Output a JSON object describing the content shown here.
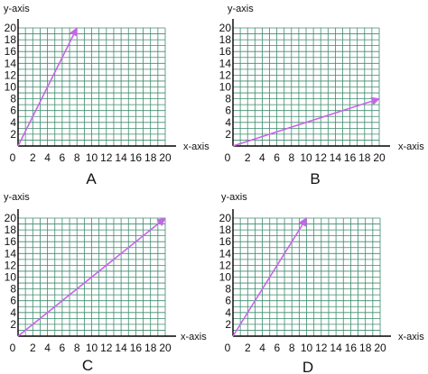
{
  "colors": {
    "grid": "#3f8a6e",
    "axis": "#000000",
    "vector": "#c765e8",
    "text": "#111111"
  },
  "chart_data": [
    {
      "type": "line",
      "label": "A",
      "xlabel": "x-axis",
      "ylabel": "y-axis",
      "xlim": [
        0,
        20
      ],
      "ylim": [
        0,
        20
      ],
      "xticks": [
        "0",
        "2",
        "4",
        "6",
        "8",
        "10",
        "12",
        "14",
        "16",
        "18",
        "20"
      ],
      "yticks": [
        "2",
        "4",
        "6",
        "8",
        "10",
        "12",
        "14",
        "16",
        "18",
        "20"
      ],
      "grid": true,
      "series": [
        {
          "x": [
            0,
            8
          ],
          "y": [
            0,
            20
          ]
        }
      ]
    },
    {
      "type": "line",
      "label": "B",
      "xlabel": "x-axis",
      "ylabel": "y-axis",
      "xlim": [
        0,
        20
      ],
      "ylim": [
        0,
        20
      ],
      "xticks": [
        "0",
        "2",
        "4",
        "6",
        "8",
        "10",
        "12",
        "14",
        "16",
        "18",
        "20"
      ],
      "yticks": [
        "2",
        "4",
        "6",
        "8",
        "10",
        "12",
        "14",
        "16",
        "18",
        "20"
      ],
      "grid": true,
      "series": [
        {
          "x": [
            0,
            20
          ],
          "y": [
            0,
            8
          ]
        }
      ]
    },
    {
      "type": "line",
      "label": "C",
      "xlabel": "x-axis",
      "ylabel": "y-axis",
      "xlim": [
        0,
        20
      ],
      "ylim": [
        0,
        20
      ],
      "xticks": [
        "0",
        "2",
        "4",
        "6",
        "8",
        "10",
        "12",
        "14",
        "16",
        "18",
        "20"
      ],
      "yticks": [
        "2",
        "4",
        "6",
        "8",
        "10",
        "12",
        "14",
        "16",
        "18",
        "20"
      ],
      "grid": true,
      "series": [
        {
          "x": [
            0,
            20
          ],
          "y": [
            0,
            20
          ]
        }
      ]
    },
    {
      "type": "line",
      "label": "D",
      "xlabel": "x-axis",
      "ylabel": "y-axis",
      "xlim": [
        0,
        20
      ],
      "ylim": [
        0,
        20
      ],
      "xticks": [
        "0",
        "2",
        "4",
        "6",
        "8",
        "10",
        "12",
        "14",
        "16",
        "18",
        "20"
      ],
      "yticks": [
        "2",
        "4",
        "6",
        "8",
        "10",
        "12",
        "14",
        "16",
        "18",
        "20"
      ],
      "grid": true,
      "series": [
        {
          "x": [
            0,
            10
          ],
          "y": [
            0,
            20
          ]
        }
      ]
    }
  ]
}
